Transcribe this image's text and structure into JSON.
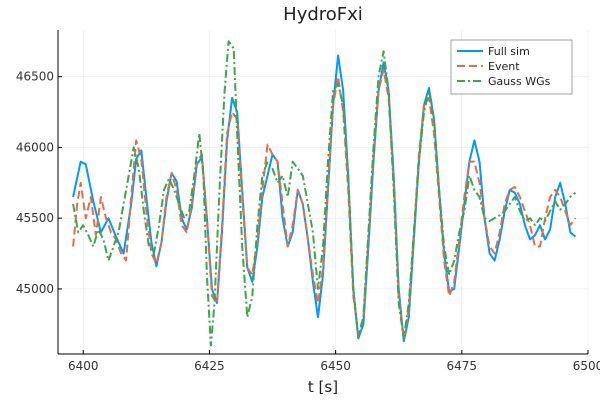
{
  "chart_data": {
    "type": "line",
    "title": "HydroFxi",
    "xlabel": "t [s]",
    "ylabel": "",
    "xlim": [
      6395,
      6500
    ],
    "ylim": [
      44540,
      46830
    ],
    "xticks": [
      6400,
      6425,
      6450,
      6475,
      6500
    ],
    "yticks": [
      45000,
      45500,
      46000,
      46500
    ],
    "grid": true,
    "legend_position": "top-right",
    "series": [
      {
        "name": "Full sim",
        "color": "#009AFA",
        "dash": "solid",
        "points": [
          [
            6398,
            45650
          ],
          [
            6399.5,
            45900
          ],
          [
            6400.5,
            45880
          ],
          [
            6402,
            45620
          ],
          [
            6403.5,
            45400
          ],
          [
            6405,
            45500
          ],
          [
            6406.5,
            45370
          ],
          [
            6408,
            45250
          ],
          [
            6409.5,
            45600
          ],
          [
            6410.5,
            45920
          ],
          [
            6411.5,
            45980
          ],
          [
            6412.5,
            45650
          ],
          [
            6413.5,
            45330
          ],
          [
            6414.5,
            45160
          ],
          [
            6415.5,
            45330
          ],
          [
            6416.5,
            45620
          ],
          [
            6417.5,
            45820
          ],
          [
            6418.5,
            45760
          ],
          [
            6419.5,
            45500
          ],
          [
            6420.5,
            45420
          ],
          [
            6421.5,
            45570
          ],
          [
            6422.5,
            45880
          ],
          [
            6423.5,
            45930
          ],
          [
            6424.5,
            45500
          ],
          [
            6425.5,
            45000
          ],
          [
            6426.5,
            44900
          ],
          [
            6427.5,
            45400
          ],
          [
            6428.5,
            46050
          ],
          [
            6429.5,
            46350
          ],
          [
            6430.5,
            46250
          ],
          [
            6431.5,
            45700
          ],
          [
            6432.5,
            45150
          ],
          [
            6433.5,
            45050
          ],
          [
            6434.5,
            45300
          ],
          [
            6435.5,
            45650
          ],
          [
            6436.5,
            45800
          ],
          [
            6437.5,
            45950
          ],
          [
            6438.5,
            45900
          ],
          [
            6439.5,
            45500
          ],
          [
            6440.5,
            45300
          ],
          [
            6441.5,
            45400
          ],
          [
            6442.5,
            45700
          ],
          [
            6443.5,
            45600
          ],
          [
            6444.5,
            45350
          ],
          [
            6445.5,
            45050
          ],
          [
            6446.5,
            44800
          ],
          [
            6447.5,
            45100
          ],
          [
            6448.5,
            45700
          ],
          [
            6449.5,
            46300
          ],
          [
            6450.5,
            46650
          ],
          [
            6451.5,
            46400
          ],
          [
            6452.5,
            45800
          ],
          [
            6453.5,
            45000
          ],
          [
            6454.5,
            44650
          ],
          [
            6455.5,
            44750
          ],
          [
            6456.5,
            45300
          ],
          [
            6457.5,
            45900
          ],
          [
            6458.5,
            46400
          ],
          [
            6459.5,
            46600
          ],
          [
            6460.5,
            46400
          ],
          [
            6461.5,
            45800
          ],
          [
            6462.5,
            45000
          ],
          [
            6463.5,
            44630
          ],
          [
            6464.5,
            44800
          ],
          [
            6465.5,
            45350
          ],
          [
            6466.5,
            45900
          ],
          [
            6467.5,
            46300
          ],
          [
            6468.5,
            46420
          ],
          [
            6469.5,
            46200
          ],
          [
            6470.5,
            45700
          ],
          [
            6471.5,
            45250
          ],
          [
            6472.5,
            44980
          ],
          [
            6473.5,
            45000
          ],
          [
            6474.5,
            45300
          ],
          [
            6475.5,
            45600
          ],
          [
            6476.5,
            45900
          ],
          [
            6477.5,
            46050
          ],
          [
            6478.5,
            45900
          ],
          [
            6479.5,
            45500
          ],
          [
            6480.5,
            45250
          ],
          [
            6481.5,
            45200
          ],
          [
            6482.5,
            45350
          ],
          [
            6483.5,
            45550
          ],
          [
            6484.5,
            45700
          ],
          [
            6485.5,
            45680
          ],
          [
            6486.5,
            45600
          ],
          [
            6487.5,
            45450
          ],
          [
            6488.5,
            45350
          ],
          [
            6489.5,
            45380
          ],
          [
            6490.5,
            45450
          ],
          [
            6491.5,
            45350
          ],
          [
            6492.5,
            45420
          ],
          [
            6493.5,
            45650
          ],
          [
            6494.5,
            45750
          ],
          [
            6495.5,
            45600
          ],
          [
            6496.5,
            45400
          ],
          [
            6497.5,
            45370
          ]
        ]
      },
      {
        "name": "Event",
        "color": "#E26F46",
        "dash": "dash",
        "points": [
          [
            6398,
            45300
          ],
          [
            6398.8,
            45600
          ],
          [
            6399.5,
            45750
          ],
          [
            6400.5,
            45500
          ],
          [
            6401.5,
            45650
          ],
          [
            6402.5,
            45380
          ],
          [
            6403.5,
            45650
          ],
          [
            6404.5,
            45500
          ],
          [
            6405.5,
            45400
          ],
          [
            6406.5,
            45350
          ],
          [
            6407.5,
            45250
          ],
          [
            6408.5,
            45200
          ],
          [
            6409.5,
            45650
          ],
          [
            6410.5,
            46050
          ],
          [
            6411.5,
            45920
          ],
          [
            6412.5,
            45550
          ],
          [
            6413.5,
            45250
          ],
          [
            6414.5,
            45180
          ],
          [
            6415.5,
            45330
          ],
          [
            6416.5,
            45650
          ],
          [
            6417.5,
            45820
          ],
          [
            6418.5,
            45700
          ],
          [
            6419.5,
            45450
          ],
          [
            6420.5,
            45400
          ],
          [
            6421.5,
            45600
          ],
          [
            6422.5,
            45900
          ],
          [
            6423.5,
            45950
          ],
          [
            6424.5,
            45500
          ],
          [
            6425.5,
            44950
          ],
          [
            6426.5,
            44900
          ],
          [
            6427.5,
            45450
          ],
          [
            6428.5,
            46100
          ],
          [
            6429.5,
            46250
          ],
          [
            6430.5,
            46200
          ],
          [
            6431.5,
            45650
          ],
          [
            6432.5,
            45150
          ],
          [
            6433.5,
            45100
          ],
          [
            6434.5,
            45350
          ],
          [
            6435.5,
            45700
          ],
          [
            6436.5,
            46020
          ],
          [
            6437.5,
            45950
          ],
          [
            6438.5,
            45900
          ],
          [
            6439.5,
            45600
          ],
          [
            6440.5,
            45300
          ],
          [
            6441.5,
            45450
          ],
          [
            6442.5,
            45700
          ],
          [
            6443.5,
            45600
          ],
          [
            6444.5,
            45350
          ],
          [
            6445.5,
            45100
          ],
          [
            6446.5,
            44900
          ],
          [
            6447.5,
            45150
          ],
          [
            6448.5,
            45750
          ],
          [
            6449.5,
            46300
          ],
          [
            6450.5,
            46500
          ],
          [
            6451.5,
            46250
          ],
          [
            6452.5,
            45700
          ],
          [
            6453.5,
            44950
          ],
          [
            6454.5,
            44680
          ],
          [
            6455.5,
            44800
          ],
          [
            6456.5,
            45350
          ],
          [
            6457.5,
            45950
          ],
          [
            6458.5,
            46400
          ],
          [
            6459.5,
            46550
          ],
          [
            6460.5,
            46350
          ],
          [
            6461.5,
            45750
          ],
          [
            6462.5,
            44950
          ],
          [
            6463.5,
            44650
          ],
          [
            6464.5,
            44850
          ],
          [
            6465.5,
            45400
          ],
          [
            6466.5,
            45950
          ],
          [
            6467.5,
            46300
          ],
          [
            6468.5,
            46350
          ],
          [
            6469.5,
            46100
          ],
          [
            6470.5,
            45650
          ],
          [
            6471.5,
            45200
          ],
          [
            6472.5,
            44950
          ],
          [
            6473.5,
            45050
          ],
          [
            6474.5,
            45350
          ],
          [
            6475.5,
            45650
          ],
          [
            6476.5,
            45900
          ],
          [
            6477.5,
            45900
          ],
          [
            6478.5,
            45750
          ],
          [
            6479.5,
            45500
          ],
          [
            6480.5,
            45300
          ],
          [
            6481.5,
            45250
          ],
          [
            6482.5,
            45400
          ],
          [
            6483.5,
            45600
          ],
          [
            6484.5,
            45700
          ],
          [
            6485.5,
            45720
          ],
          [
            6486.5,
            45650
          ],
          [
            6487.5,
            45550
          ],
          [
            6488.5,
            45450
          ],
          [
            6489.5,
            45300
          ],
          [
            6490.5,
            45300
          ],
          [
            6491.5,
            45500
          ],
          [
            6492.5,
            45650
          ],
          [
            6493.5,
            45700
          ],
          [
            6494.5,
            45650
          ],
          [
            6495.5,
            45550
          ],
          [
            6496.5,
            45450
          ],
          [
            6497.5,
            45500
          ]
        ]
      },
      {
        "name": "Gauss WGs",
        "color": "#3EA44E",
        "dash": "dashdot",
        "points": [
          [
            6398,
            45600
          ],
          [
            6399,
            45400
          ],
          [
            6400,
            45450
          ],
          [
            6401,
            45380
          ],
          [
            6402,
            45300
          ],
          [
            6403,
            45420
          ],
          [
            6404,
            45350
          ],
          [
            6405,
            45200
          ],
          [
            6406,
            45300
          ],
          [
            6407,
            45400
          ],
          [
            6408,
            45600
          ],
          [
            6409,
            45800
          ],
          [
            6410,
            46000
          ],
          [
            6411,
            45850
          ],
          [
            6412,
            45550
          ],
          [
            6413,
            45300
          ],
          [
            6414,
            45250
          ],
          [
            6415,
            45450
          ],
          [
            6416,
            45700
          ],
          [
            6417,
            45780
          ],
          [
            6418,
            45700
          ],
          [
            6419,
            45600
          ],
          [
            6420,
            45500
          ],
          [
            6421,
            45550
          ],
          [
            6422,
            45800
          ],
          [
            6423,
            46100
          ],
          [
            6423.8,
            45800
          ],
          [
            6424.5,
            45100
          ],
          [
            6425.3,
            44600
          ],
          [
            6426,
            44900
          ],
          [
            6427,
            45700
          ],
          [
            6428,
            46400
          ],
          [
            6428.8,
            46750
          ],
          [
            6429.8,
            46700
          ],
          [
            6430.5,
            46100
          ],
          [
            6431.5,
            45300
          ],
          [
            6432.5,
            44800
          ],
          [
            6433.5,
            44950
          ],
          [
            6434.5,
            45450
          ],
          [
            6435.5,
            45800
          ],
          [
            6436.5,
            45900
          ],
          [
            6437.5,
            45850
          ],
          [
            6438.5,
            45750
          ],
          [
            6439.5,
            45800
          ],
          [
            6440.5,
            45650
          ],
          [
            6441.5,
            45900
          ],
          [
            6442.5,
            45850
          ],
          [
            6443.5,
            45800
          ],
          [
            6444.5,
            45600
          ],
          [
            6445.5,
            45400
          ],
          [
            6446.5,
            45000
          ],
          [
            6447.5,
            45300
          ],
          [
            6448.5,
            45900
          ],
          [
            6449.5,
            46400
          ],
          [
            6450.5,
            46450
          ],
          [
            6451.5,
            46300
          ],
          [
            6452.5,
            45800
          ],
          [
            6453.5,
            45000
          ],
          [
            6454.5,
            44650
          ],
          [
            6455.5,
            44800
          ],
          [
            6456.5,
            45400
          ],
          [
            6457.5,
            46000
          ],
          [
            6458.5,
            46500
          ],
          [
            6459.5,
            46680
          ],
          [
            6460.5,
            46400
          ],
          [
            6461.5,
            45700
          ],
          [
            6462.5,
            44900
          ],
          [
            6463.5,
            44650
          ],
          [
            6464.5,
            44900
          ],
          [
            6465.5,
            45400
          ],
          [
            6466.5,
            45900
          ],
          [
            6467.5,
            46250
          ],
          [
            6468.5,
            46400
          ],
          [
            6469.5,
            46200
          ],
          [
            6470.5,
            45700
          ],
          [
            6471.5,
            45300
          ],
          [
            6472.5,
            45100
          ],
          [
            6473.5,
            45200
          ],
          [
            6474.5,
            45400
          ],
          [
            6475.5,
            45550
          ],
          [
            6476.5,
            45800
          ],
          [
            6477.5,
            45700
          ],
          [
            6478.5,
            45650
          ],
          [
            6479.5,
            45500
          ],
          [
            6480.5,
            45480
          ],
          [
            6481.5,
            45500
          ],
          [
            6482.5,
            45520
          ],
          [
            6483.5,
            45550
          ],
          [
            6484.5,
            45600
          ],
          [
            6485.5,
            45650
          ],
          [
            6486.5,
            45550
          ],
          [
            6487.5,
            45480
          ],
          [
            6488.5,
            45500
          ],
          [
            6489.5,
            45450
          ],
          [
            6490.5,
            45500
          ],
          [
            6491.5,
            45480
          ],
          [
            6492.5,
            45550
          ],
          [
            6493.5,
            45620
          ],
          [
            6494.5,
            45560
          ],
          [
            6495.5,
            45600
          ],
          [
            6496.5,
            45650
          ],
          [
            6497.5,
            45680
          ]
        ]
      }
    ]
  }
}
